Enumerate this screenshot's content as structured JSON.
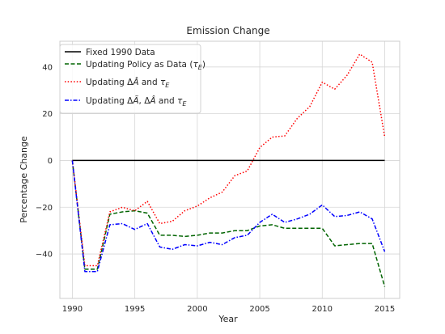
{
  "chart_data": {
    "type": "line",
    "title": "Emission Change",
    "xlabel": "Year",
    "ylabel": "Percentage Change",
    "xlim": [
      1989,
      2016.2
    ],
    "ylim": [
      -59,
      51
    ],
    "xticks": [
      1990,
      1995,
      2000,
      2005,
      2010,
      2015
    ],
    "yticks": [
      -40,
      -20,
      0,
      20,
      40
    ],
    "grid": true,
    "legend_position": "top-left",
    "x": [
      1990,
      1991,
      1992,
      1993,
      1994,
      1995,
      1996,
      1997,
      1998,
      1999,
      2000,
      2001,
      2002,
      2003,
      2004,
      2005,
      2006,
      2007,
      2008,
      2009,
      2010,
      2011,
      2012,
      2013,
      2014,
      2015
    ],
    "series": [
      {
        "name": "Fixed 1990 Data",
        "color": "#000000",
        "dash": "solid",
        "values": [
          0,
          0,
          0,
          0,
          0,
          0,
          0,
          0,
          0,
          0,
          0,
          0,
          0,
          0,
          0,
          0,
          0,
          0,
          0,
          0,
          0,
          0,
          0,
          0,
          0,
          0
        ]
      },
      {
        "name": "Updating Policy as Data (τE)",
        "color": "#006400",
        "dash": "dashed",
        "values": [
          0,
          -46.5,
          -46.5,
          -23,
          -22,
          -21.5,
          -22.5,
          -32,
          -32,
          -32.5,
          -32,
          -31,
          -31,
          -30,
          -30,
          -28,
          -27.5,
          -29,
          -29,
          -29,
          -29,
          -36.5,
          -36,
          -35.5,
          -35.5,
          -54
        ]
      },
      {
        "name": "Updating ΔÂ and τE",
        "color": "#ff0000",
        "dash": "dotted",
        "values": [
          0,
          -45,
          -45,
          -22,
          -20,
          -21.5,
          -17.5,
          -27,
          -26,
          -21.5,
          -19.5,
          -16,
          -13.5,
          -6.5,
          -4.5,
          5.5,
          10,
          10.5,
          18,
          23,
          33.5,
          30.5,
          36.5,
          45.5,
          42,
          10
        ]
      },
      {
        "name": "Updating ΔÃ, ΔÂ and τE",
        "color": "#0000ff",
        "dash": "dashdot",
        "values": [
          0,
          -47.5,
          -47.5,
          -27.5,
          -27,
          -29.5,
          -27,
          -37,
          -38,
          -36,
          -36.5,
          -35,
          -36,
          -33,
          -32,
          -26.5,
          -23,
          -26.5,
          -25,
          -23,
          -19,
          -24,
          -23.5,
          -22,
          -25,
          -39
        ]
      }
    ]
  }
}
